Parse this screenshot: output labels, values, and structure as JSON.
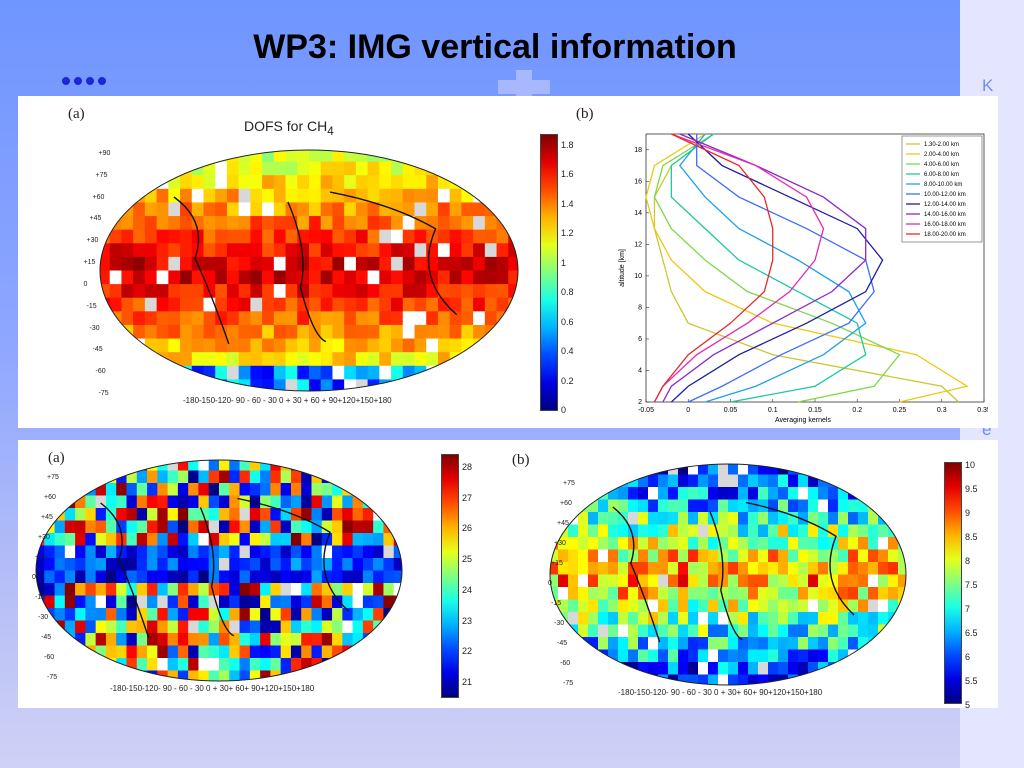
{
  "slide": {
    "title": "WP3: IMG vertical information",
    "side_letters": [
      "K",
      "e"
    ]
  },
  "colors": {
    "accent_dots": "#1c28d8",
    "background_top": "#6f95ff"
  },
  "icons": [
    "bullet-dots-icon",
    "cross-decoration-icon"
  ],
  "chart_data": [
    {
      "id": "top-a",
      "type": "heatmap",
      "panel_label": "(a)",
      "title": "DOFS for CH",
      "title_subscript": "4",
      "colorbar_ticks": [
        "1.8",
        "1.6",
        "1.4",
        "1.2",
        "1",
        "0.8",
        "0.6",
        "0.4",
        "0.2",
        "0"
      ],
      "colorbar_range": [
        0,
        1.85
      ],
      "lon_labels": "-180-150-120- 90 - 60 - 30    0 + 30 + 60 + 90+120+150+180",
      "lat_labels": [
        "+90",
        "+75",
        "+60",
        "+45",
        "+30",
        "+15",
        "0",
        "-15",
        "-30",
        "-45",
        "-60",
        "-75"
      ]
    },
    {
      "id": "top-b",
      "type": "line",
      "panel_label": "(b)",
      "xlabel": "Averaging kernels",
      "ylabel": "altitude [km]",
      "xlim": [
        -0.05,
        0.35
      ],
      "ylim": [
        2,
        19
      ],
      "x_ticks": [
        "-0.05",
        "0",
        "0.05",
        "0.1",
        "0.15",
        "0.2",
        "0.25",
        "0.3",
        "0.35"
      ],
      "y_ticks": [
        "2",
        "4",
        "6",
        "8",
        "10",
        "12",
        "14",
        "16",
        "18"
      ],
      "legend_position": "top-right",
      "altitudes": [
        2,
        3,
        5,
        7,
        9,
        11,
        13,
        15,
        17,
        19
      ],
      "series": [
        {
          "name": "1.30-2.00 km",
          "color": "#c8c832",
          "values": [
            0.32,
            0.3,
            0.1,
            0.0,
            -0.02,
            -0.03,
            -0.04,
            -0.04,
            -0.02,
            0.03
          ]
        },
        {
          "name": "2.00-4.00 km",
          "color": "#f0c814",
          "values": [
            0.25,
            0.33,
            0.27,
            0.1,
            0.02,
            -0.02,
            -0.04,
            -0.05,
            -0.04,
            0.02
          ]
        },
        {
          "name": "4.00-6.00 km",
          "color": "#7cd84a",
          "values": [
            0.13,
            0.22,
            0.25,
            0.17,
            0.07,
            0.02,
            -0.02,
            -0.04,
            -0.03,
            0.03
          ]
        },
        {
          "name": "6.00-8.00 km",
          "color": "#1ec8a0",
          "values": [
            0.05,
            0.15,
            0.21,
            0.2,
            0.13,
            0.06,
            0.02,
            -0.02,
            -0.02,
            0.03
          ]
        },
        {
          "name": "8.00-10.00 km",
          "color": "#1ea0f0",
          "values": [
            0.02,
            0.08,
            0.16,
            0.21,
            0.19,
            0.13,
            0.06,
            0.02,
            -0.01,
            0.02
          ]
        },
        {
          "name": "10.00-12.00 km",
          "color": "#3c6eff",
          "values": [
            0.0,
            0.04,
            0.11,
            0.19,
            0.22,
            0.21,
            0.14,
            0.06,
            0.01,
            0.01
          ]
        },
        {
          "name": "12.00-14.00 km",
          "color": "#1e1ea0",
          "values": [
            -0.02,
            0.0,
            0.06,
            0.14,
            0.21,
            0.23,
            0.2,
            0.12,
            0.04,
            0.0
          ]
        },
        {
          "name": "14.00-16.00 km",
          "color": "#8c28c8",
          "values": [
            -0.03,
            -0.02,
            0.03,
            0.1,
            0.17,
            0.21,
            0.21,
            0.16,
            0.08,
            -0.01
          ]
        },
        {
          "name": "16.00-18.00 km",
          "color": "#e628b4",
          "values": [
            -0.04,
            -0.03,
            0.01,
            0.07,
            0.12,
            0.15,
            0.16,
            0.14,
            0.08,
            -0.02
          ]
        },
        {
          "name": "18.00-20.00 km",
          "color": "#e62828",
          "values": [
            -0.04,
            -0.03,
            0.0,
            0.05,
            0.09,
            0.1,
            0.1,
            0.09,
            0.06,
            -0.02
          ]
        }
      ]
    },
    {
      "id": "bottom-a",
      "type": "heatmap",
      "panel_label": "(a)",
      "colorbar_ticks": [
        "28",
        "27",
        "26",
        "25",
        "24",
        "23",
        "22",
        "21"
      ],
      "colorbar_range": [
        20.5,
        28.5
      ],
      "lon_labels": "-180-150-120- 90 - 60 - 30    0 + 30+ 60+ 90+120+150+180",
      "lat_labels": [
        "+75",
        "+60",
        "+45",
        "+30",
        "+15",
        "0",
        "-15",
        "-30",
        "-45",
        "-60",
        "-75"
      ]
    },
    {
      "id": "bottom-b",
      "type": "heatmap",
      "panel_label": "(b)",
      "colorbar_ticks": [
        "10",
        "9.5",
        "9",
        "8.5",
        "8",
        "7.5",
        "7",
        "6.5",
        "6",
        "5.5",
        "5"
      ],
      "colorbar_range": [
        5,
        10
      ],
      "lon_labels": "-180-150-120- 90 - 60 - 30    0 + 30+ 60+ 90+120+150+180",
      "lat_labels": [
        "+75",
        "+60",
        "+45",
        "+30",
        "+15",
        "0",
        "-15",
        "-30",
        "-45",
        "-60",
        "-75"
      ]
    }
  ]
}
